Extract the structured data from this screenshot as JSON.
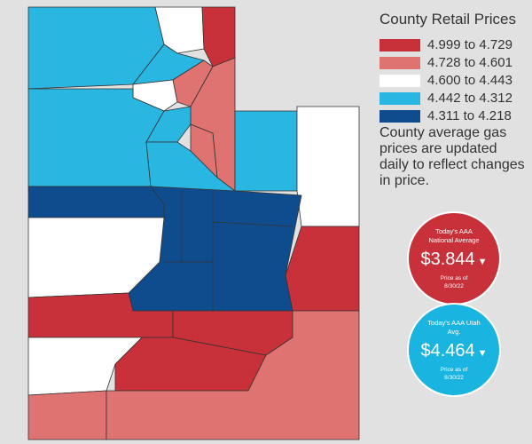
{
  "legend": {
    "title": "County Retail Prices",
    "items": [
      {
        "label": "4.999 to 4.729",
        "color": "#c8313a"
      },
      {
        "label": "4.728 to 4.601",
        "color": "#de7371"
      },
      {
        "label": "4.600 to 4.443",
        "color": "#ffffff"
      },
      {
        "label": "4.442 to 4.312",
        "color": "#29b6e0"
      },
      {
        "label": "4.311 to 4.218",
        "color": "#0f4c8e"
      }
    ]
  },
  "note": "County average gas prices are updated daily to reflect changes in price.",
  "badges": [
    {
      "title": "Today's AAA National Average",
      "price": "$3.844",
      "date_label": "Price as of 8/30/22",
      "color": "#c8313a"
    },
    {
      "title": "Today's AAA Utah Avg.",
      "price": "$4.464",
      "date_label": "Price as of 8/30/22",
      "color": "#1ab4e0"
    }
  ]
}
